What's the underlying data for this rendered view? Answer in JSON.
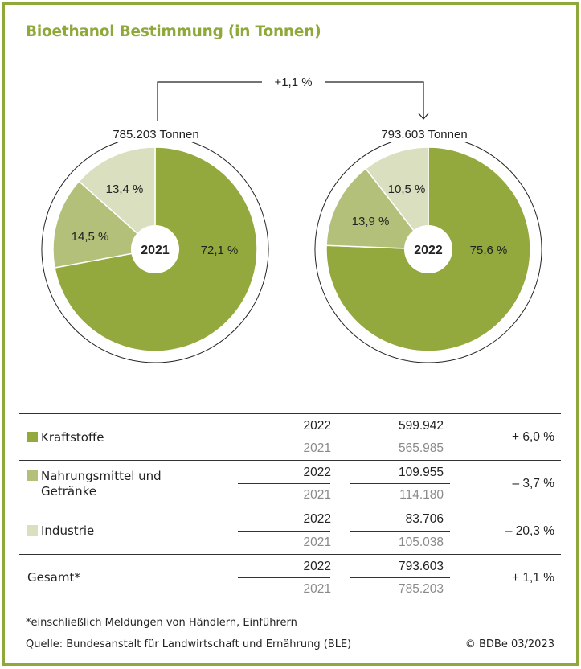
{
  "title": "Bioethanol Bestimmung (in Tonnen)",
  "colors": {
    "frame": "#8fa83a",
    "kraftstoffe": "#93a93e",
    "nahrungsmittel": "#b3c07a",
    "industrie": "#dadfbf",
    "title": "#8fa83a"
  },
  "connector": {
    "change_label": "+1,1 %"
  },
  "pies": [
    {
      "year": "2021",
      "total_label": "785.203 Tonnen",
      "slices": [
        {
          "name": "Kraftstoffe",
          "label": "72,1 %"
        },
        {
          "name": "Nahrungsmittel und Getränke",
          "label": "14,5 %"
        },
        {
          "name": "Industrie",
          "label": "13,4 %"
        }
      ]
    },
    {
      "year": "2022",
      "total_label": "793.603 Tonnen",
      "slices": [
        {
          "name": "Kraftstoffe",
          "label": "75,6 %"
        },
        {
          "name": "Nahrungsmittel und Getränke",
          "label": "13,9 %"
        },
        {
          "name": "Industrie",
          "label": "10,5 %"
        }
      ]
    }
  ],
  "table": {
    "rows": [
      {
        "category_line1": "Kraftstoffe",
        "category_line2": "",
        "year_a": "2022",
        "value_a": "599.942",
        "year_b": "2021",
        "value_b": "565.985",
        "change": "+ 6,0 %"
      },
      {
        "category_line1": "Nahrungsmittel und",
        "category_line2": "Getränke",
        "year_a": "2022",
        "value_a": "109.955",
        "year_b": "2021",
        "value_b": "114.180",
        "change": "– 3,7 %"
      },
      {
        "category_line1": "Industrie",
        "category_line2": "",
        "year_a": "2022",
        "value_a": "83.706",
        "year_b": "2021",
        "value_b": "105.038",
        "change": "– 20,3 %"
      },
      {
        "category_line1": "Gesamt*",
        "category_line2": "",
        "year_a": "2022",
        "value_a": "793.603",
        "year_b": "2021",
        "value_b": "785.203",
        "change": "+ 1,1 %"
      }
    ]
  },
  "footnote": "*einschließlich Meldungen von Händlern, Einführern",
  "source": "Quelle: Bundesanstalt für Landwirtschaft und Ernährung (BLE)",
  "copyright": "© BDBe 03/2023",
  "chart_data": {
    "type": "pie",
    "title": "Bioethanol Bestimmung (in Tonnen)",
    "categories": [
      "Kraftstoffe",
      "Nahrungsmittel und Getränke",
      "Industrie"
    ],
    "series": [
      {
        "name": "2021",
        "total": 785203,
        "values": [
          72.1,
          14.5,
          13.4
        ],
        "absolute": [
          565985,
          114180,
          105038
        ]
      },
      {
        "name": "2022",
        "total": 793603,
        "values": [
          75.6,
          13.9,
          10.5
        ],
        "absolute": [
          599942,
          109955,
          83706
        ]
      }
    ],
    "changes": {
      "Kraftstoffe": "+6,0 %",
      "Nahrungsmittel und Getränke": "-3,7 %",
      "Industrie": "-20,3 %",
      "Gesamt": "+1,1 %"
    },
    "annotations": [
      "+1,1 %",
      "785.203 Tonnen",
      "793.603 Tonnen"
    ],
    "unit": "Tonnen"
  }
}
